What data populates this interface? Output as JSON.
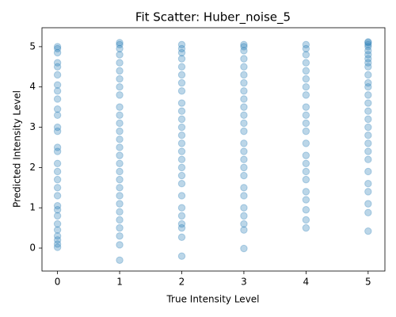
{
  "chart_data": {
    "type": "scatter",
    "title": "Fit Scatter: Huber_noise_5",
    "xlabel": "True Intensity Level",
    "ylabel": "Predicted Intensity Level",
    "color": "#1f77b4",
    "xlim": [
      -0.25,
      5.27
    ],
    "ylim": [
      -0.57,
      5.47
    ],
    "xticks": [
      0,
      1,
      2,
      3,
      4,
      5
    ],
    "yticks": [
      0,
      1,
      2,
      3,
      4,
      5
    ],
    "x": [
      0,
      0,
      0,
      0,
      0,
      0,
      0,
      0,
      0,
      0,
      0,
      0,
      0,
      0,
      0,
      0,
      0,
      0,
      0,
      0,
      0,
      0,
      0,
      0,
      0,
      0,
      0,
      0,
      0,
      1,
      1,
      1,
      1,
      1,
      1,
      1,
      1,
      1,
      1,
      1,
      1,
      1,
      1,
      1,
      1,
      1,
      1,
      1,
      1,
      1,
      1,
      1,
      1,
      1,
      1,
      1,
      1,
      2,
      2,
      2,
      2,
      2,
      2,
      2,
      2,
      2,
      2,
      2,
      2,
      2,
      2,
      2,
      2,
      2,
      2,
      2,
      2,
      2,
      2,
      2,
      2,
      2,
      2,
      3,
      3,
      3,
      3,
      3,
      3,
      3,
      3,
      3,
      3,
      3,
      3,
      3,
      3,
      3,
      3,
      3,
      3,
      3,
      3,
      3,
      3,
      3,
      3,
      3,
      4,
      4,
      4,
      4,
      4,
      4,
      4,
      4,
      4,
      4,
      4,
      4,
      4,
      4,
      4,
      4,
      4,
      4,
      4,
      4,
      4,
      4,
      5,
      5,
      5,
      5,
      5,
      5,
      5,
      5,
      5,
      5,
      5,
      5,
      5,
      5,
      5,
      5,
      5,
      5,
      5,
      5,
      5,
      5,
      5,
      5,
      5,
      5,
      5
    ],
    "values": [
      0.02,
      0.1,
      0.2,
      0.3,
      0.45,
      0.6,
      0.8,
      0.95,
      1.05,
      1.3,
      1.5,
      1.7,
      1.9,
      2.1,
      2.4,
      2.5,
      2.9,
      3.0,
      3.3,
      3.45,
      3.7,
      3.9,
      4.05,
      4.3,
      4.5,
      4.6,
      4.85,
      4.95,
      5.0,
      -0.3,
      0.08,
      0.3,
      0.5,
      0.7,
      0.9,
      1.1,
      1.3,
      1.5,
      1.7,
      1.9,
      2.1,
      2.3,
      2.5,
      2.7,
      2.9,
      3.1,
      3.3,
      3.5,
      3.8,
      4.0,
      4.2,
      4.4,
      4.6,
      4.8,
      4.95,
      5.05,
      5.1,
      -0.2,
      0.27,
      0.5,
      0.6,
      0.8,
      1.0,
      1.3,
      1.6,
      1.8,
      2.0,
      2.2,
      2.4,
      2.6,
      2.8,
      3.0,
      3.2,
      3.4,
      3.6,
      3.9,
      4.1,
      4.3,
      4.5,
      4.7,
      4.85,
      4.95,
      5.05,
      -0.01,
      0.45,
      0.6,
      0.8,
      1.0,
      1.3,
      1.5,
      1.8,
      2.0,
      2.2,
      2.4,
      2.6,
      2.9,
      3.1,
      3.3,
      3.5,
      3.7,
      3.9,
      4.1,
      4.3,
      4.5,
      4.7,
      4.9,
      5.0,
      5.05,
      0.5,
      0.7,
      0.95,
      1.2,
      1.4,
      1.7,
      1.9,
      2.1,
      2.3,
      2.6,
      2.9,
      3.1,
      3.3,
      3.5,
      3.8,
      4.0,
      4.2,
      4.4,
      4.6,
      4.8,
      4.95,
      5.05,
      0.42,
      0.88,
      1.1,
      1.4,
      1.6,
      1.9,
      2.2,
      2.4,
      2.6,
      2.8,
      3.0,
      3.2,
      3.4,
      3.6,
      3.8,
      4.0,
      4.1,
      4.3,
      4.5,
      4.6,
      4.7,
      4.8,
      4.9,
      5.0,
      5.05,
      5.1,
      5.12
    ]
  }
}
